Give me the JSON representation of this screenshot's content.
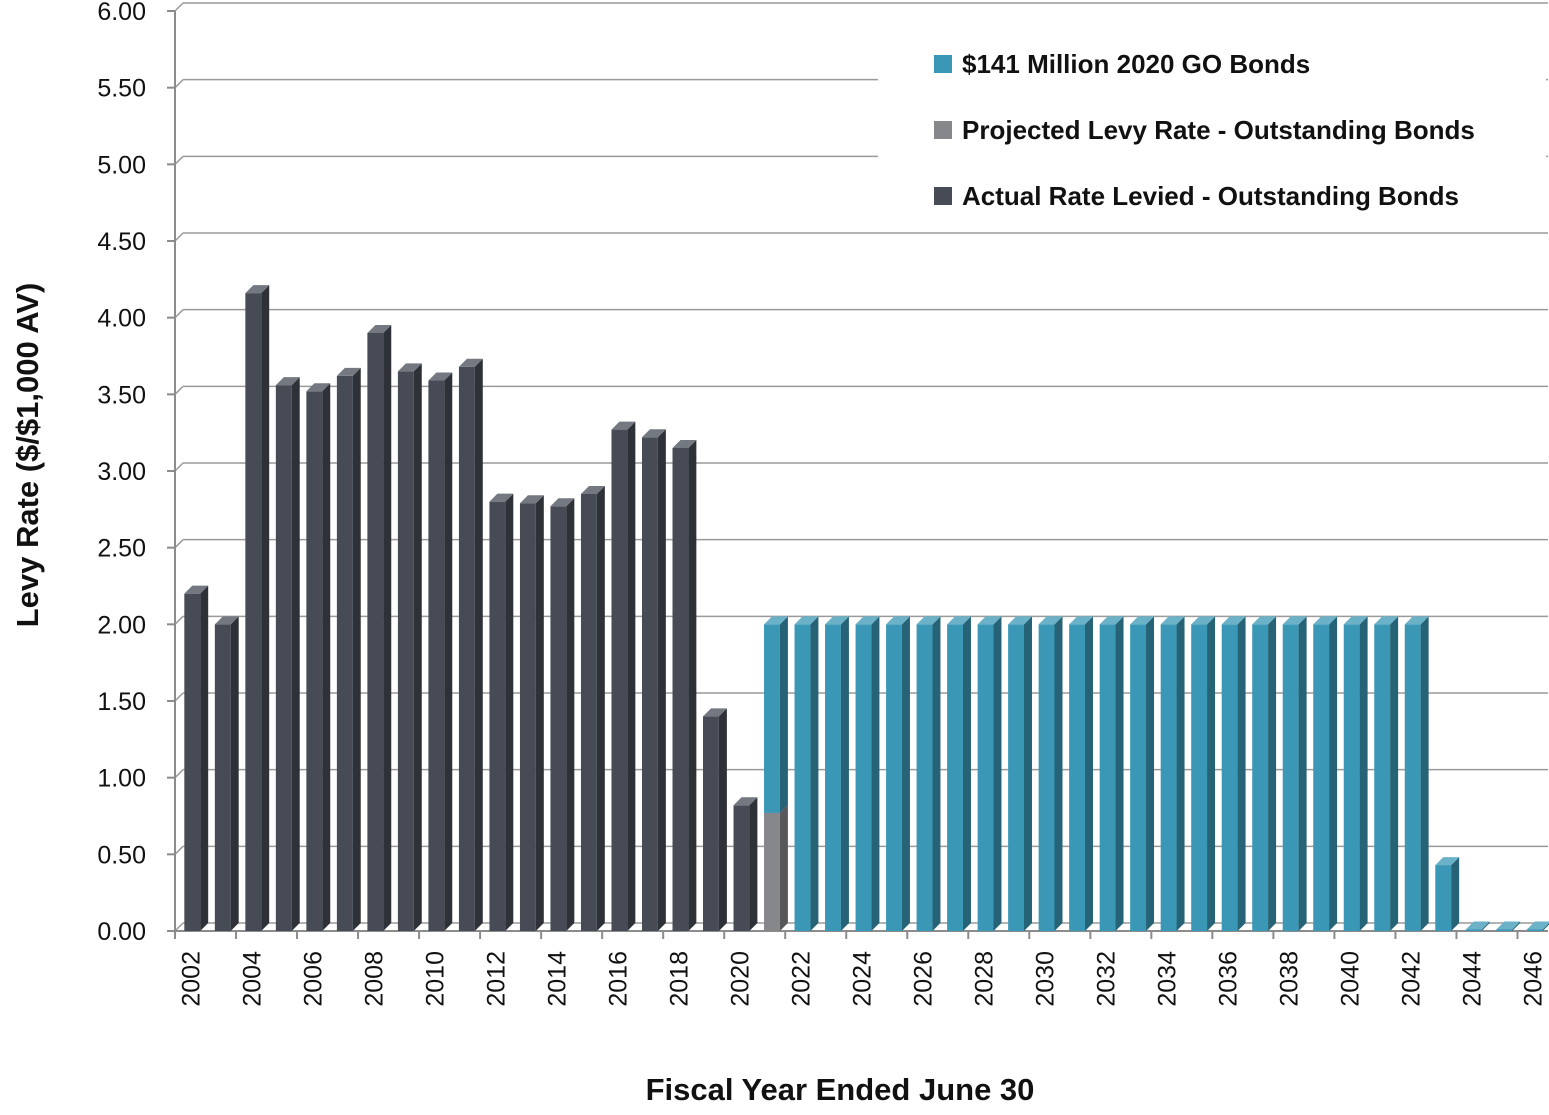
{
  "chart_data": {
    "type": "bar",
    "stacked": true,
    "xlabel": "Fiscal Year Ended June 30",
    "ylabel": "Levy Rate ($/$1,000 AV)",
    "ylim": [
      0,
      6
    ],
    "yticks": [
      "0.00",
      "0.50",
      "1.00",
      "1.50",
      "2.00",
      "2.50",
      "3.00",
      "3.50",
      "4.00",
      "4.50",
      "5.00",
      "5.50",
      "6.00"
    ],
    "grid": true,
    "legend_position": "top-right",
    "categories": [
      "2002",
      "2003",
      "2004",
      "2005",
      "2006",
      "2007",
      "2008",
      "2009",
      "2010",
      "2011",
      "2012",
      "2013",
      "2014",
      "2015",
      "2016",
      "2017",
      "2018",
      "2019",
      "2020",
      "2021",
      "2022",
      "2023",
      "2024",
      "2025",
      "2026",
      "2027",
      "2028",
      "2029",
      "2030",
      "2031",
      "2032",
      "2033",
      "2034",
      "2035",
      "2036",
      "2037",
      "2038",
      "2039",
      "2040",
      "2041",
      "2042",
      "2043",
      "2044",
      "2045",
      "2046"
    ],
    "x_tick_labels": [
      "2002",
      "2004",
      "2006",
      "2008",
      "2010",
      "2012",
      "2014",
      "2016",
      "2018",
      "2020",
      "2022",
      "2024",
      "2026",
      "2028",
      "2030",
      "2032",
      "2034",
      "2036",
      "2038",
      "2040",
      "2042",
      "2044",
      "2046"
    ],
    "series": [
      {
        "name": "Actual Rate Levied - Outstanding Bonds",
        "color": "#464b55",
        "values": [
          2.2,
          2.0,
          4.16,
          3.56,
          3.52,
          3.62,
          3.9,
          3.65,
          3.59,
          3.68,
          2.8,
          2.79,
          2.77,
          2.85,
          3.27,
          3.22,
          3.15,
          1.4,
          0.82,
          0,
          0,
          0,
          0,
          0,
          0,
          0,
          0,
          0,
          0,
          0,
          0,
          0,
          0,
          0,
          0,
          0,
          0,
          0,
          0,
          0,
          0,
          0,
          0,
          0,
          0
        ]
      },
      {
        "name": "Projected Levy Rate - Outstanding Bonds",
        "color": "#86878b",
        "values": [
          0,
          0,
          0,
          0,
          0,
          0,
          0,
          0,
          0,
          0,
          0,
          0,
          0,
          0,
          0,
          0,
          0,
          0,
          0,
          0.77,
          0,
          0,
          0,
          0,
          0,
          0,
          0,
          0,
          0,
          0,
          0,
          0,
          0,
          0,
          0,
          0,
          0,
          0,
          0,
          0,
          0,
          0,
          0,
          0,
          0
        ]
      },
      {
        "name": "$141 Million 2020 GO Bonds",
        "color": "#3a98b6",
        "values": [
          0,
          0,
          0,
          0,
          0,
          0,
          0,
          0,
          0,
          0,
          0,
          0,
          0,
          0,
          0,
          0,
          0,
          0,
          0,
          1.23,
          2.0,
          2.0,
          2.0,
          2.0,
          2.0,
          2.0,
          2.0,
          2.0,
          2.0,
          2.0,
          2.0,
          2.0,
          2.0,
          2.0,
          2.0,
          2.0,
          2.0,
          2.0,
          2.0,
          2.0,
          2.0,
          0.43,
          0.01,
          0.01,
          0.01
        ]
      }
    ],
    "legend_order": [
      2,
      1,
      0
    ]
  }
}
